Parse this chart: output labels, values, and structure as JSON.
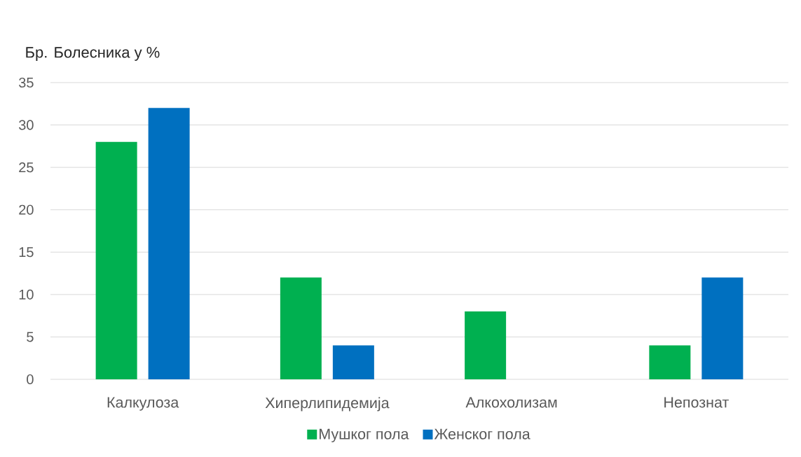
{
  "chart_data": {
    "type": "bar",
    "ylabel": "Бр. Болесника у %",
    "categories": [
      "Калкулоза",
      "Хиперлипидемија",
      "Алкохолизам",
      "Непознат"
    ],
    "series": [
      {
        "name": "Мушког пола",
        "color": "#00b050",
        "values": [
          28,
          12,
          8,
          4
        ]
      },
      {
        "name": "Женског пола",
        "color": "#0070c0",
        "values": [
          32,
          4,
          null,
          12
        ]
      }
    ],
    "ylim": [
      0,
      35
    ],
    "yticks": [
      0,
      5,
      10,
      15,
      20,
      25,
      30,
      35
    ],
    "grid": "y",
    "legend": "bottom"
  }
}
